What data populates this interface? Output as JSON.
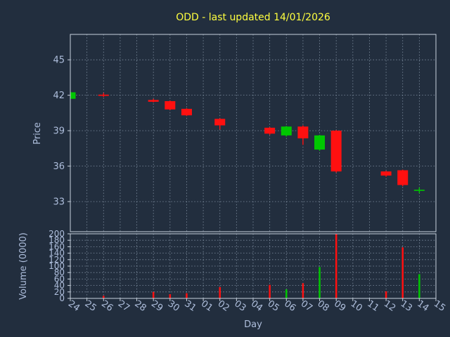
{
  "colors": {
    "background": "#222e3e",
    "text": "#aebedc",
    "title": "#ffff3f",
    "up": "#00c800",
    "down": "#ff1010",
    "grid": "#9fb0c2",
    "spine": "#c8d2de"
  },
  "chart_data": {
    "type": "candlestick",
    "title": "ODD - last updated 14/01/2026",
    "xlabel": "Day",
    "legend": "none",
    "grid": "on-dashed",
    "x_ticks": [
      "24",
      "25",
      "26",
      "27",
      "28",
      "29",
      "30",
      "31",
      "01",
      "02",
      "03",
      "04",
      "05",
      "06",
      "07",
      "08",
      "09",
      "10",
      "11",
      "12",
      "13",
      "14",
      "15"
    ],
    "price_axis": {
      "label": "Price",
      "ticks": [
        33,
        36,
        39,
        42,
        45
      ],
      "range": [
        30.45,
        47.15
      ]
    },
    "volume_axis": {
      "label": "Volume (0000)",
      "ticks": [
        0,
        20,
        40,
        60,
        80,
        100,
        120,
        140,
        160,
        180,
        200
      ],
      "range": [
        0,
        200
      ]
    },
    "candles": [
      {
        "day": "24",
        "open": 41.7,
        "high": 42.3,
        "low": 41.65,
        "close": 42.25,
        "volume": 0
      },
      {
        "day": "26",
        "open": 42.05,
        "high": 42.2,
        "low": 41.85,
        "close": 41.95,
        "volume": 8
      },
      {
        "day": "29",
        "open": 41.6,
        "high": 41.7,
        "low": 41.4,
        "close": 41.45,
        "volume": 20
      },
      {
        "day": "30",
        "open": 41.5,
        "high": 41.55,
        "low": 40.75,
        "close": 40.8,
        "volume": 13
      },
      {
        "day": "31",
        "open": 40.85,
        "high": 40.9,
        "low": 40.25,
        "close": 40.3,
        "volume": 16
      },
      {
        "day": "02",
        "open": 40.0,
        "high": 40.05,
        "low": 39.1,
        "close": 39.45,
        "volume": 35
      },
      {
        "day": "05",
        "open": 39.25,
        "high": 39.3,
        "low": 38.65,
        "close": 38.75,
        "volume": 42
      },
      {
        "day": "06",
        "open": 38.6,
        "high": 39.4,
        "low": 38.5,
        "close": 39.35,
        "volume": 28
      },
      {
        "day": "07",
        "open": 39.35,
        "high": 39.45,
        "low": 37.8,
        "close": 38.35,
        "volume": 47
      },
      {
        "day": "08",
        "open": 37.4,
        "high": 38.65,
        "low": 37.3,
        "close": 38.6,
        "volume": 97
      },
      {
        "day": "09",
        "open": 39.0,
        "high": 39.05,
        "low": 35.45,
        "close": 35.55,
        "volume": 200
      },
      {
        "day": "12",
        "open": 35.55,
        "high": 35.6,
        "low": 35.1,
        "close": 35.2,
        "volume": 22
      },
      {
        "day": "13",
        "open": 35.65,
        "high": 35.7,
        "low": 34.3,
        "close": 34.4,
        "volume": 158
      },
      {
        "day": "14",
        "open": 33.95,
        "high": 34.2,
        "low": 33.7,
        "close": 34.0,
        "volume": 75
      }
    ]
  }
}
